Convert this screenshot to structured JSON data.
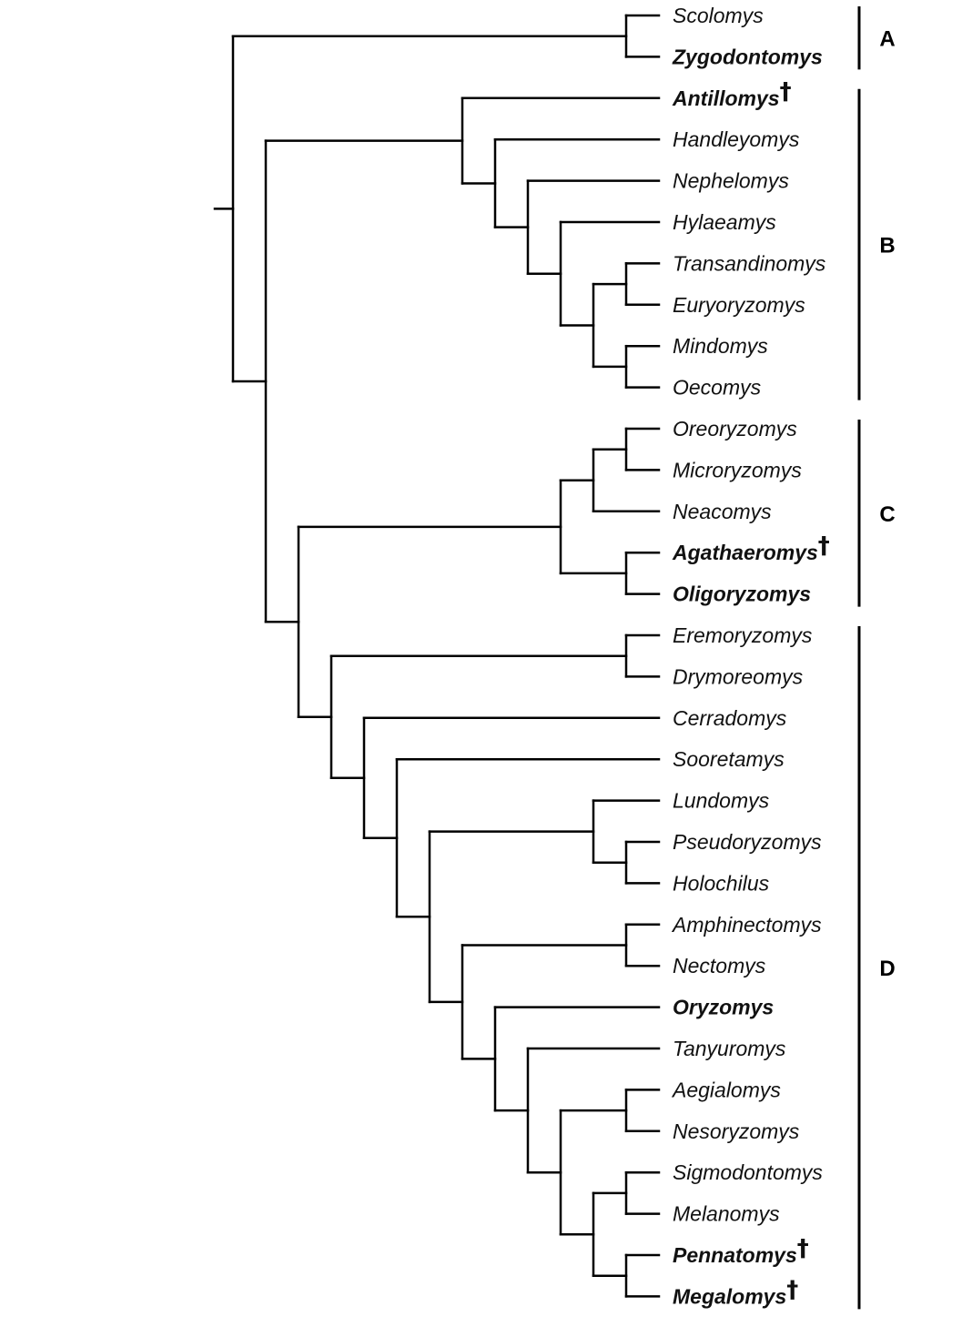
{
  "tips": [
    {
      "name": "Scolomys",
      "bold": false,
      "extinct": false
    },
    {
      "name": "Zygodontomys",
      "bold": true,
      "extinct": false
    },
    {
      "name": "Antillomys",
      "bold": true,
      "extinct": true
    },
    {
      "name": "Handleyomys",
      "bold": false,
      "extinct": false
    },
    {
      "name": "Nephelomys",
      "bold": false,
      "extinct": false
    },
    {
      "name": "Hylaeamys",
      "bold": false,
      "extinct": false
    },
    {
      "name": "Transandinomys",
      "bold": false,
      "extinct": false
    },
    {
      "name": "Euryoryzomys",
      "bold": false,
      "extinct": false
    },
    {
      "name": "Mindomys",
      "bold": false,
      "extinct": false
    },
    {
      "name": "Oecomys",
      "bold": false,
      "extinct": false
    },
    {
      "name": "Oreoryzomys",
      "bold": false,
      "extinct": false
    },
    {
      "name": "Microryzomys",
      "bold": false,
      "extinct": false
    },
    {
      "name": "Neacomys",
      "bold": false,
      "extinct": false
    },
    {
      "name": "Agathaeromys",
      "bold": true,
      "extinct": true
    },
    {
      "name": "Oligoryzomys",
      "bold": true,
      "extinct": false
    },
    {
      "name": "Eremoryzomys",
      "bold": false,
      "extinct": false
    },
    {
      "name": "Drymoreomys",
      "bold": false,
      "extinct": false
    },
    {
      "name": "Cerradomys",
      "bold": false,
      "extinct": false
    },
    {
      "name": "Sooretamys",
      "bold": false,
      "extinct": false
    },
    {
      "name": "Lundomys",
      "bold": false,
      "extinct": false
    },
    {
      "name": "Pseudoryzomys",
      "bold": false,
      "extinct": false
    },
    {
      "name": "Holochilus",
      "bold": false,
      "extinct": false
    },
    {
      "name": "Amphinectomys",
      "bold": false,
      "extinct": false
    },
    {
      "name": "Nectomys",
      "bold": false,
      "extinct": false
    },
    {
      "name": "Oryzomys",
      "bold": true,
      "extinct": false
    },
    {
      "name": "Tanyuromys",
      "bold": false,
      "extinct": false
    },
    {
      "name": "Aegialomys",
      "bold": false,
      "extinct": false
    },
    {
      "name": "Nesoryzomys",
      "bold": false,
      "extinct": false
    },
    {
      "name": "Sigmodontomys",
      "bold": false,
      "extinct": false
    },
    {
      "name": "Melanomys",
      "bold": false,
      "extinct": false
    },
    {
      "name": "Pennatomys",
      "bold": true,
      "extinct": true
    },
    {
      "name": "Megalomys",
      "bold": true,
      "extinct": true
    }
  ],
  "extinct_marker": "†",
  "newick": "((Scolomys,Zygodontomys),((Antillomys,(Handleyomys,(Nephelomys,(Hylaeamys,((Transandinomys,Euryoryzomys),(Mindomys,Oecomys)))))),((((Oreoryzomys,Microryzomys),Neacomys),(Agathaeromys,Oligoryzomys)),((Eremoryzomys,Drymoreomys),(Cerradomys,(Sooretamys,((Lundomys,(Pseudoryzomys,Holochilus)),((Amphinectomys,Nectomys),(Oryzomys,(Tanyuromys,((Aegialomys,Nesoryzomys),((Sigmodontomys,Melanomys),(Pennatomys,Megalomys)))))))))))))",
  "clades": [
    {
      "label": "A",
      "from": 0,
      "to": 1
    },
    {
      "label": "B",
      "from": 2,
      "to": 9
    },
    {
      "label": "C",
      "from": 10,
      "to": 14
    },
    {
      "label": "D",
      "from": 15,
      "to": 31
    }
  ]
}
